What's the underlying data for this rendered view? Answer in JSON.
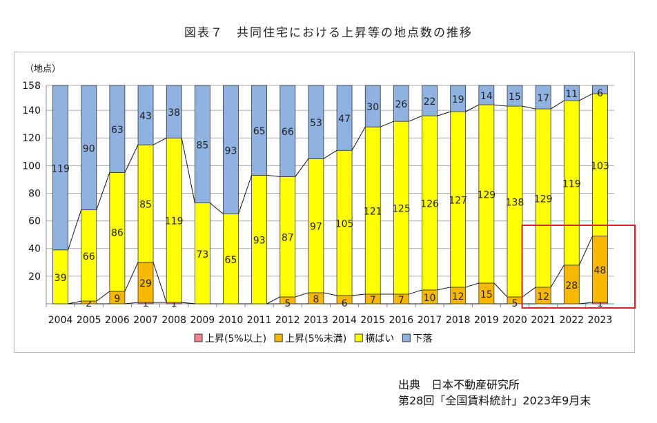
{
  "chart_data": {
    "type": "bar",
    "stacked": true,
    "title": "図表７　共同住宅における上昇等の地点数の推移",
    "ylabel": "（地点）",
    "ylim": [
      0,
      158
    ],
    "yticks": [
      20,
      40,
      60,
      80,
      100,
      120,
      140,
      158
    ],
    "grid": true,
    "legend_position": "bottom",
    "categories": [
      "2004",
      "2005",
      "2006",
      "2007",
      "2008",
      "2009",
      "2010",
      "2011",
      "2012",
      "2013",
      "2014",
      "2015",
      "2016",
      "2017",
      "2018",
      "2019",
      "2020",
      "2021",
      "2022",
      "2023"
    ],
    "series": [
      {
        "name": "上昇(5%以上)",
        "color": "#f4828c",
        "values": [
          0,
          0,
          0,
          1,
          1,
          0,
          0,
          0,
          0,
          0,
          0,
          0,
          0,
          0,
          0,
          0,
          0,
          0,
          0,
          1
        ]
      },
      {
        "name": "上昇(5%未満)",
        "color": "#f8b800",
        "values": [
          0,
          2,
          9,
          29,
          0,
          0,
          0,
          0,
          5,
          8,
          6,
          7,
          7,
          10,
          12,
          15,
          5,
          12,
          28,
          48
        ]
      },
      {
        "name": "横ばい",
        "color": "#ffff00",
        "values": [
          39,
          66,
          86,
          85,
          119,
          73,
          65,
          93,
          87,
          97,
          105,
          121,
          125,
          126,
          127,
          129,
          138,
          129,
          119,
          103
        ]
      },
      {
        "name": "下落",
        "color": "#8fb2e0",
        "values": [
          119,
          90,
          63,
          43,
          38,
          85,
          93,
          65,
          66,
          53,
          47,
          30,
          26,
          22,
          19,
          14,
          15,
          17,
          11,
          6
        ]
      }
    ],
    "highlight": {
      "categories": [
        "2021",
        "2022",
        "2023"
      ],
      "color": "#e02020"
    }
  },
  "source": {
    "line1": "出典　日本不動産研究所",
    "line2": "第28回「全国賃料統計」2023年9月末"
  }
}
